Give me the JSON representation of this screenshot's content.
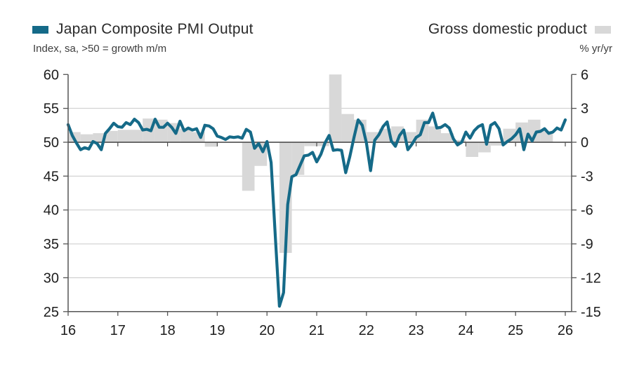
{
  "header": {
    "left": {
      "title": "Japan Composite PMI Output",
      "subtitle": "Index, sa, >50 = growth m/m"
    },
    "right": {
      "title": "Gross domestic product",
      "subtitle": "% yr/yr"
    }
  },
  "colors": {
    "pmi_line": "#156a88",
    "gdp_bar": "#d8d8d8",
    "grid_light": "#c9c9c9",
    "axis_dark": "#555555",
    "zero_line": "#4e4e4e",
    "label_text": "#1d1d1d"
  },
  "chart_data": {
    "type": "line+bar",
    "title_left": "Japan Composite PMI Output",
    "title_right": "Gross domestic product",
    "left_axis": {
      "label": "Index, sa, >50 = growth m/m",
      "ticks": [
        60,
        55,
        50,
        45,
        40,
        35,
        30,
        25
      ],
      "min": 25,
      "max": 60,
      "baseline": 50
    },
    "right_axis": {
      "label": "% yr/yr",
      "ticks": [
        6,
        3,
        0,
        -3,
        -6,
        -9,
        -12,
        -15
      ],
      "min": -15,
      "max": 6,
      "baseline": 0
    },
    "x_axis": {
      "tick_labels": [
        "16",
        "17",
        "18",
        "19",
        "20",
        "21",
        "22",
        "23",
        "24",
        "25",
        "26"
      ],
      "start_year": 2016,
      "end_year": 2026
    },
    "grid": "light horizontal gridlines at 30-55, dark zero line at 50/0, no legend box",
    "series": [
      {
        "name": "Japan Composite PMI Output",
        "type": "line",
        "axis": "left",
        "frequency": "monthly",
        "start": "2016-01",
        "values": [
          52.6,
          51.0,
          49.9,
          48.9,
          49.2,
          49.0,
          50.1,
          49.8,
          48.9,
          51.3,
          52.0,
          52.8,
          52.3,
          52.2,
          52.9,
          52.6,
          53.4,
          52.9,
          51.8,
          51.9,
          51.7,
          53.4,
          52.2,
          52.2,
          52.8,
          52.2,
          51.3,
          53.1,
          51.7,
          52.1,
          51.8,
          52.0,
          50.7,
          52.5,
          52.4,
          52.0,
          50.9,
          50.7,
          50.4,
          50.8,
          50.7,
          50.8,
          50.6,
          51.9,
          51.5,
          49.1,
          49.8,
          48.6,
          50.1,
          47.0,
          36.2,
          25.8,
          27.8,
          40.8,
          44.9,
          45.2,
          46.6,
          48.0,
          48.1,
          48.5,
          47.1,
          48.2,
          49.9,
          51.0,
          48.8,
          48.9,
          48.8,
          45.5,
          47.9,
          50.7,
          53.3,
          52.5,
          49.9,
          45.8,
          50.3,
          51.1,
          52.3,
          53.0,
          50.2,
          49.4,
          51.0,
          51.8,
          48.9,
          49.7,
          50.7,
          51.1,
          52.9,
          52.9,
          54.3,
          52.1,
          52.2,
          52.6,
          52.1,
          50.5,
          49.6,
          50.0,
          51.5,
          50.6,
          51.7,
          52.3,
          52.6,
          49.7,
          52.5,
          52.9,
          52.0,
          49.6,
          50.1,
          50.5,
          51.1,
          52.0,
          48.9,
          51.2,
          50.2,
          51.5,
          51.6,
          52.0,
          51.3,
          51.5,
          52.1,
          51.8,
          53.3
        ]
      },
      {
        "name": "Gross domestic product",
        "type": "bar",
        "axis": "right",
        "frequency": "quarterly",
        "start": "2016-Q1",
        "clip_max": 6,
        "values": [
          0.9,
          0.7,
          0.8,
          1.0,
          1.1,
          1.1,
          2.1,
          2.0,
          1.7,
          1.2,
          0.9,
          -0.4,
          0.0,
          0.0,
          -4.3,
          -2.1,
          0.0,
          -9.8,
          -2.9,
          -0.35,
          -0.35,
          7.3,
          2.5,
          2.0,
          0.9,
          1.2,
          1.4,
          0.9,
          2.0,
          1.4,
          0.8,
          0.2,
          -1.3,
          -0.9,
          -0.3,
          1.2,
          1.75,
          2.0,
          1.0
        ]
      }
    ]
  }
}
